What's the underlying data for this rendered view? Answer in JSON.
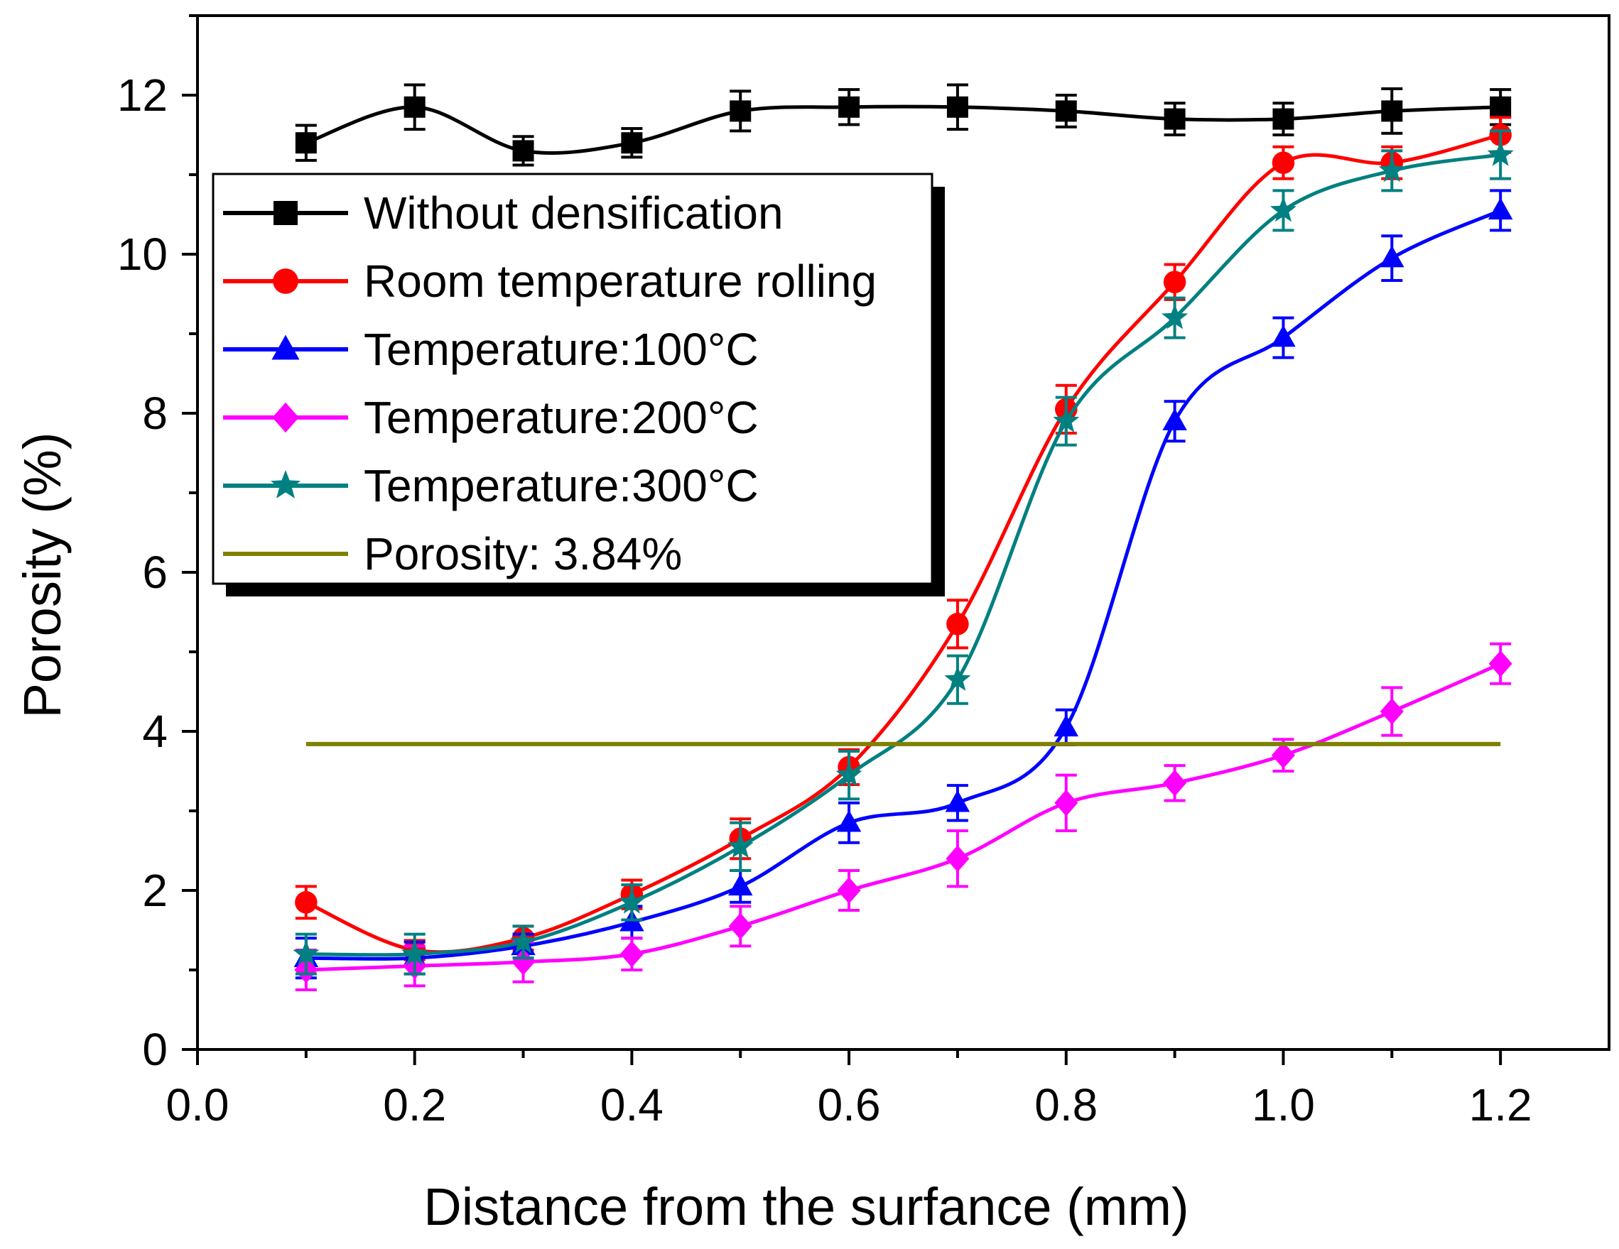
{
  "chart_data": {
    "type": "line",
    "title": "",
    "xlabel": "Distance from the surfance (mm)",
    "ylabel": "Porosity (%)",
    "xlim": [
      0.0,
      1.3
    ],
    "ylim": [
      0,
      13
    ],
    "xticks": [
      "0.0",
      "0.2",
      "0.4",
      "0.6",
      "0.8",
      "1.0",
      "1.2"
    ],
    "xtick_values": [
      0.0,
      0.2,
      0.4,
      0.6,
      0.8,
      1.0,
      1.2
    ],
    "yticks": [
      "0",
      "2",
      "4",
      "6",
      "8",
      "10",
      "12"
    ],
    "ytick_values": [
      0,
      2,
      4,
      6,
      8,
      10,
      12
    ],
    "grid": false,
    "legend_position": "top-left",
    "x": [
      0.1,
      0.2,
      0.3,
      0.4,
      0.5,
      0.6,
      0.7,
      0.8,
      0.9,
      1.0,
      1.1,
      1.2
    ],
    "series": [
      {
        "name": "Without densification",
        "color": "#000000",
        "marker": "square",
        "values": [
          11.4,
          11.85,
          11.3,
          11.4,
          11.8,
          11.85,
          11.85,
          11.8,
          11.7,
          11.7,
          11.8,
          11.85
        ],
        "errors": [
          0.22,
          0.28,
          0.18,
          0.18,
          0.25,
          0.22,
          0.28,
          0.2,
          0.2,
          0.2,
          0.28,
          0.22
        ]
      },
      {
        "name": "Room temperature rolling",
        "color": "#ff0000",
        "marker": "circle",
        "values": [
          1.85,
          1.25,
          1.4,
          1.95,
          2.65,
          3.55,
          5.35,
          8.05,
          9.65,
          11.15,
          11.15,
          11.5
        ],
        "errors": [
          0.2,
          0.12,
          0.15,
          0.18,
          0.25,
          0.22,
          0.3,
          0.3,
          0.22,
          0.2,
          0.2,
          0.22
        ]
      },
      {
        "name": "Temperature:100°C",
        "color": "#0000ff",
        "marker": "triangle",
        "values": [
          1.15,
          1.15,
          1.3,
          1.6,
          2.05,
          2.85,
          3.1,
          4.05,
          7.9,
          8.95,
          9.95,
          10.55
        ],
        "errors": [
          0.25,
          0.2,
          0.15,
          0.2,
          0.2,
          0.25,
          0.22,
          0.22,
          0.25,
          0.25,
          0.28,
          0.25
        ]
      },
      {
        "name": "Temperature:200°C",
        "color": "#ff00ff",
        "marker": "diamond",
        "values": [
          1.0,
          1.05,
          1.1,
          1.2,
          1.55,
          2.0,
          2.4,
          3.1,
          3.35,
          3.7,
          4.25,
          4.85
        ],
        "errors": [
          0.25,
          0.25,
          0.25,
          0.2,
          0.25,
          0.25,
          0.35,
          0.35,
          0.22,
          0.2,
          0.3,
          0.25
        ]
      },
      {
        "name": "Temperature:300°C",
        "color": "#008080",
        "marker": "star",
        "values": [
          1.2,
          1.2,
          1.35,
          1.85,
          2.55,
          3.45,
          4.65,
          7.9,
          9.2,
          10.55,
          11.05,
          11.25
        ],
        "errors": [
          0.25,
          0.25,
          0.2,
          0.22,
          0.3,
          0.3,
          0.3,
          0.3,
          0.25,
          0.25,
          0.25,
          0.3
        ]
      },
      {
        "name": "Porosity: 3.84%",
        "color": "#808000",
        "marker": "none",
        "type": "hline",
        "value": 3.84,
        "x_range": [
          0.1,
          1.2
        ]
      }
    ]
  }
}
